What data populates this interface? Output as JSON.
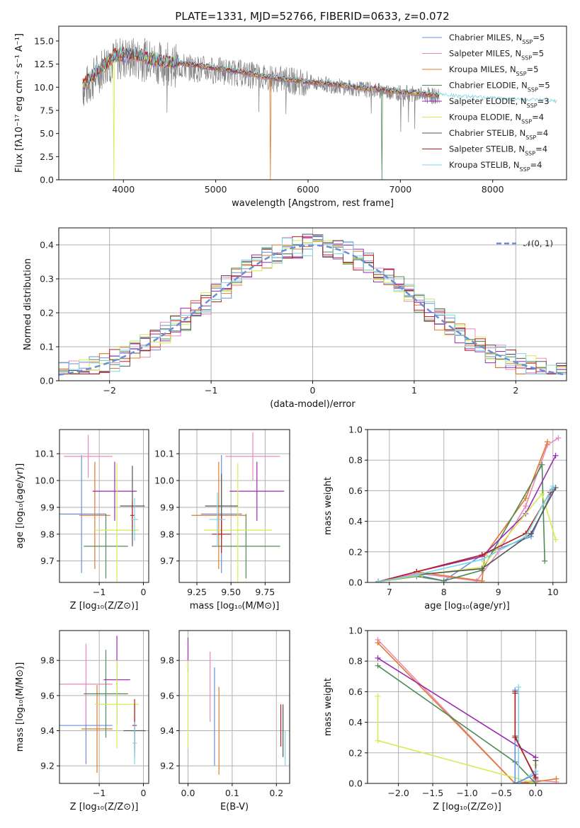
{
  "chart_data": [
    {
      "id": "spectrum",
      "type": "line",
      "title": "PLATE=1331, MJD=52766, FIBERID=0633, z=0.072",
      "xlabel": "wavelength [Angstrom, rest frame]",
      "ylabel": "Flux [fλ10⁻¹⁷ erg cm⁻² s⁻¹ A⁻¹]",
      "xlim": [
        3300,
        8800
      ],
      "ylim": [
        0,
        16.6
      ],
      "xticks": [
        "4000",
        "5000",
        "6000",
        "7000",
        "8000"
      ],
      "yticks": [
        "0.0",
        "2.5",
        "5.0",
        "7.5",
        "10.0",
        "12.5",
        "15.0"
      ],
      "data_color": "#808080",
      "data": {
        "x": [
          3600,
          3800,
          4000,
          4200,
          4400,
          4600,
          4800,
          5000,
          5200,
          5400,
          5600,
          5800,
          6000,
          6200,
          6400,
          6600,
          6800,
          7000,
          7200,
          7400
        ],
        "y": [
          10.0,
          12.5,
          13.2,
          13.0,
          12.6,
          12.3,
          12.0,
          11.8,
          11.6,
          11.3,
          11.0,
          10.7,
          10.5,
          10.3,
          10.0,
          9.8,
          9.6,
          9.4,
          9.2,
          9.0
        ]
      },
      "model": {
        "x": [
          3550,
          3700,
          3900,
          4100,
          4300,
          4500,
          4700,
          4900,
          5100,
          5300,
          5500,
          5700,
          5900,
          6100,
          6300,
          6500,
          6700,
          6900,
          7100,
          7300,
          7500,
          7700,
          7900,
          8100,
          8300,
          8500,
          8700
        ],
        "y": [
          10.2,
          11.5,
          13.4,
          13.6,
          13.0,
          12.7,
          12.5,
          12.2,
          11.9,
          11.6,
          11.2,
          10.9,
          10.7,
          10.5,
          10.3,
          10.0,
          9.8,
          9.6,
          9.4,
          9.2,
          9.0,
          8.8,
          8.7,
          8.6,
          8.5,
          8.4,
          8.3
        ]
      },
      "legend_position": "top-right",
      "legend": [
        {
          "label": "Chabrier MILES, N",
          "sub": "SSP",
          "tail": "=5",
          "color": "#6a8fd8"
        },
        {
          "label": "Salpeter MILES, N",
          "sub": "SSP",
          "tail": "=5",
          "color": "#e888c0"
        },
        {
          "label": "Kroupa MILES, N",
          "sub": "SSP",
          "tail": "=5",
          "color": "#e07a28"
        },
        {
          "label": "Chabrier ELODIE, N",
          "sub": "SSP",
          "tail": "=5",
          "color": "#4e8a55"
        },
        {
          "label": "Salpeter ELODIE, N",
          "sub": "SSP",
          "tail": "=3",
          "color": "#9b2ab5"
        },
        {
          "label": "Kroupa ELODIE, N",
          "sub": "SSP",
          "tail": "=4",
          "color": "#d4ec50"
        },
        {
          "label": "Chabrier STELIB, N",
          "sub": "SSP",
          "tail": "=4",
          "color": "#555555"
        },
        {
          "label": "Salpeter STELIB, N",
          "sub": "SSP",
          "tail": "=4",
          "color": "#b81f1f"
        },
        {
          "label": "Kroupa STELIB, N",
          "sub": "SSP",
          "tail": "=4",
          "color": "#7ed4e6"
        }
      ]
    },
    {
      "id": "residuals",
      "type": "line",
      "xlabel": "(data-model)/error",
      "ylabel": "Normed distribution",
      "xlim": [
        -2.5,
        2.5
      ],
      "ylim": [
        0,
        0.45
      ],
      "xticks": [
        "−2",
        "−1",
        "0",
        "1",
        "2"
      ],
      "yticks": [
        "0.0",
        "0.1",
        "0.2",
        "0.3",
        "0.4"
      ],
      "gauss_label": "𝒩(0, 1)",
      "gauss_color": "#6a8fd8",
      "grid": true,
      "legend_position": "top-right"
    },
    {
      "id": "age-vs-z",
      "type": "scatter",
      "xlabel": "Z [log₁₀(Z/Z⊙)]",
      "ylabel": "age  [log₁₀(age/yr)]",
      "xlim": [
        -1.9,
        0.12
      ],
      "ylim": [
        9.62,
        10.19
      ],
      "xticks": [
        "−1",
        "0"
      ],
      "yticks": [
        "9.7",
        "9.8",
        "9.9",
        "10.0",
        "10.1"
      ],
      "points": [
        {
          "x": -1.4,
          "y": 9.875,
          "xerr": 0.55,
          "yerr": 0.22,
          "color": "#6a8fd8"
        },
        {
          "x": -1.25,
          "y": 10.09,
          "xerr": 0.55,
          "yerr": 0.08,
          "color": "#e888c0"
        },
        {
          "x": -1.1,
          "y": 9.87,
          "xerr": 0.35,
          "yerr": 0.2,
          "color": "#e07a28"
        },
        {
          "x": -0.85,
          "y": 9.755,
          "xerr": 0.5,
          "yerr": 0.12,
          "color": "#4e8a55"
        },
        {
          "x": -0.65,
          "y": 9.96,
          "xerr": 0.5,
          "yerr": 0.11,
          "color": "#9b2ab5"
        },
        {
          "x": -0.6,
          "y": 9.815,
          "xerr": 0.5,
          "yerr": 0.25,
          "color": "#d4ec50"
        },
        {
          "x": -0.25,
          "y": 9.905,
          "xerr": 0.28,
          "yerr": 0.15,
          "color": "#555555"
        },
        {
          "x": -0.25,
          "y": 9.87,
          "xerr": 0.05,
          "yerr": 0.05,
          "color": "#b81f1f"
        },
        {
          "x": -0.2,
          "y": 9.855,
          "xerr": 0.08,
          "yerr": 0.08,
          "color": "#7ed4e6"
        }
      ]
    },
    {
      "id": "age-vs-mass",
      "type": "scatter",
      "xlabel": "mass [log₁₀(M/M⊙)]",
      "xlim": [
        9.12,
        9.93
      ],
      "ylim": [
        9.62,
        10.19
      ],
      "xticks": [
        "9.25",
        "9.50",
        "9.75"
      ],
      "yticks": [
        "9.7",
        "9.8",
        "9.9",
        "10.0",
        "10.1"
      ],
      "points": [
        {
          "x": 9.43,
          "y": 9.875,
          "xerr": 0.15,
          "yerr": 0.22,
          "color": "#6a8fd8"
        },
        {
          "x": 9.66,
          "y": 10.09,
          "xerr": 0.2,
          "yerr": 0.09,
          "color": "#e888c0"
        },
        {
          "x": 9.41,
          "y": 9.87,
          "xerr": 0.2,
          "yerr": 0.2,
          "color": "#e07a28"
        },
        {
          "x": 9.61,
          "y": 9.755,
          "xerr": 0.25,
          "yerr": 0.12,
          "color": "#4e8a55"
        },
        {
          "x": 9.69,
          "y": 9.96,
          "xerr": 0.2,
          "yerr": 0.11,
          "color": "#9b2ab5"
        },
        {
          "x": 9.55,
          "y": 9.815,
          "xerr": 0.25,
          "yerr": 0.25,
          "color": "#d4ec50"
        },
        {
          "x": 9.43,
          "y": 9.905,
          "xerr": 0.12,
          "yerr": 0.12,
          "color": "#555555"
        },
        {
          "x": 9.43,
          "y": 9.8,
          "xerr": 0.07,
          "yerr": 0.07,
          "color": "#b81f1f"
        },
        {
          "x": 9.4,
          "y": 9.855,
          "xerr": 0.06,
          "yerr": 0.1,
          "color": "#7ed4e6"
        }
      ]
    },
    {
      "id": "weight-vs-age",
      "type": "line",
      "xlabel": "age  [log₁₀(age/yr)]",
      "ylabel": "mass weight",
      "xlim": [
        6.6,
        10.25
      ],
      "ylim": [
        0,
        1.0
      ],
      "xticks": [
        "7",
        "8",
        "9",
        "10"
      ],
      "yticks": [
        "0.0",
        "0.2",
        "0.4",
        "0.6",
        "0.8",
        "1.0"
      ],
      "series": [
        {
          "color": "#6a8fd8",
          "x": [
            6.8,
            7.5,
            8.0,
            8.7,
            9.6,
            10.0
          ],
          "y": [
            0.005,
            0.05,
            0.01,
            0.18,
            0.3,
            0.61
          ]
        },
        {
          "color": "#e888c0",
          "x": [
            6.8,
            7.5,
            8.6,
            9.0,
            9.5,
            9.9,
            10.1
          ],
          "y": [
            0.005,
            0.06,
            0.01,
            0.2,
            0.5,
            0.9,
            0.945
          ]
        },
        {
          "color": "#e07a28",
          "x": [
            6.8,
            7.5,
            8.7,
            8.75,
            9.5,
            9.9
          ],
          "y": [
            0.005,
            0.07,
            0.01,
            0.18,
            0.55,
            0.92
          ]
        },
        {
          "color": "#4e8a55",
          "x": [
            6.8,
            7.5,
            8.0,
            8.7,
            9.8,
            9.85
          ],
          "y": [
            0.005,
            0.04,
            0.01,
            0.08,
            0.77,
            0.14
          ]
        },
        {
          "color": "#9b2ab5",
          "x": [
            6.8,
            7.5,
            8.7,
            9.5,
            10.05
          ],
          "y": [
            0.005,
            0.07,
            0.17,
            0.45,
            0.83
          ]
        },
        {
          "color": "#d4ec50",
          "x": [
            6.8,
            7.6,
            8.7,
            9.8,
            10.05
          ],
          "y": [
            0.005,
            0.05,
            0.1,
            0.58,
            0.28
          ]
        },
        {
          "color": "#555555",
          "x": [
            6.8,
            7.5,
            8.7,
            9.6,
            10.05
          ],
          "y": [
            0.005,
            0.05,
            0.09,
            0.32,
            0.62
          ]
        },
        {
          "color": "#b81f1f",
          "x": [
            6.8,
            7.5,
            8.7,
            9.5,
            9.95
          ],
          "y": [
            0.005,
            0.07,
            0.18,
            0.32,
            0.59
          ]
        },
        {
          "color": "#7ed4e6",
          "x": [
            6.8,
            7.5,
            8.7,
            9.5,
            10.0
          ],
          "y": [
            0.005,
            0.05,
            0.15,
            0.3,
            0.63
          ]
        }
      ]
    },
    {
      "id": "mass-vs-z",
      "type": "scatter",
      "xlabel": "Z [log₁₀(Z/Z⊙)]",
      "ylabel": "mass [log₁₀(M/M⊙)]",
      "xlim": [
        -1.9,
        0.12
      ],
      "ylim": [
        9.1,
        9.97
      ],
      "xticks": [
        "−1",
        "0"
      ],
      "yticks": [
        "9.2",
        "9.4",
        "9.6",
        "9.8"
      ],
      "points": [
        {
          "x": -1.3,
          "y": 9.43,
          "xerr": 0.6,
          "yerr": 0.22,
          "color": "#6a8fd8"
        },
        {
          "x": -1.3,
          "y": 9.665,
          "xerr": 0.6,
          "yerr": 0.23,
          "color": "#e888c0"
        },
        {
          "x": -1.05,
          "y": 9.41,
          "xerr": 0.35,
          "yerr": 0.25,
          "color": "#e07a28"
        },
        {
          "x": -0.85,
          "y": 9.61,
          "xerr": 0.5,
          "yerr": 0.25,
          "color": "#4e8a55"
        },
        {
          "x": -0.6,
          "y": 9.69,
          "xerr": 0.3,
          "yerr": 0.25,
          "color": "#9b2ab5"
        },
        {
          "x": -0.6,
          "y": 9.55,
          "xerr": 0.5,
          "yerr": 0.25,
          "color": "#d4ec50"
        },
        {
          "x": -0.2,
          "y": 9.4,
          "xerr": 0.25,
          "yerr": 0.15,
          "color": "#555555"
        },
        {
          "x": -0.2,
          "y": 9.43,
          "xerr": 0.05,
          "yerr": 0.15,
          "color": "#b81f1f"
        },
        {
          "x": -0.2,
          "y": 9.33,
          "xerr": 0.05,
          "yerr": 0.12,
          "color": "#7ed4e6"
        }
      ]
    },
    {
      "id": "mass-vs-ebv",
      "type": "scatter",
      "xlabel": "E(B-V)",
      "xlim": [
        -0.02,
        0.23
      ],
      "ylim": [
        9.1,
        9.97
      ],
      "xticks": [
        "0.0",
        "0.1",
        "0.2"
      ],
      "yticks": [
        "9.2",
        "9.4",
        "9.6",
        "9.8"
      ],
      "points": [
        {
          "x": 0.0,
          "y": 9.83,
          "yerr": 0.1,
          "color": "#9b2ab5"
        },
        {
          "x": 0.0,
          "y": 9.55,
          "yerr": 0.25,
          "color": "#d4ec50"
        },
        {
          "x": 0.05,
          "y": 9.65,
          "yerr": 0.2,
          "color": "#e888c0"
        },
        {
          "x": 0.06,
          "y": 9.48,
          "yerr": 0.28,
          "color": "#6a8fd8"
        },
        {
          "x": 0.07,
          "y": 9.4,
          "yerr": 0.25,
          "color": "#e07a28"
        },
        {
          "x": 0.21,
          "y": 9.43,
          "yerr": 0.12,
          "color": "#b81f1f"
        },
        {
          "x": 0.215,
          "y": 9.4,
          "yerr": 0.15,
          "color": "#555555"
        },
        {
          "x": 0.22,
          "y": 9.3,
          "yerr": 0.1,
          "color": "#7ed4e6"
        }
      ]
    },
    {
      "id": "weight-vs-z",
      "type": "line",
      "xlabel": "Z [log₁₀(Z/Z⊙)]",
      "ylabel": "mass weight",
      "xlim": [
        -2.45,
        0.45
      ],
      "ylim": [
        0,
        1.0
      ],
      "xticks": [
        "−2.0",
        "−1.5",
        "−1.0",
        "−0.5",
        "0.0"
      ],
      "yticks": [
        "0.0",
        "0.2",
        "0.4",
        "0.6",
        "0.8",
        "1.0"
      ],
      "series": [
        {
          "color": "#e888c0",
          "x": [
            -2.3,
            -0.3,
            0.0,
            0.3
          ],
          "y": [
            0.94,
            0.0,
            0.02,
            0.01
          ]
        },
        {
          "color": "#e07a28",
          "x": [
            -2.3,
            -0.3,
            0.0,
            0.3
          ],
          "y": [
            0.92,
            0.0,
            0.01,
            0.03
          ]
        },
        {
          "color": "#9b2ab5",
          "x": [
            -2.3,
            0.0
          ],
          "y": [
            0.82,
            0.17
          ]
        },
        {
          "color": "#4e8a55",
          "x": [
            -2.3,
            -0.3,
            0.0
          ],
          "y": [
            0.77,
            0.14,
            0.0
          ]
        },
        {
          "color": "#d4ec50",
          "x": [
            -2.3,
            -2.3,
            0.0,
            0.0
          ],
          "y": [
            0.57,
            0.28,
            0.0,
            0.12
          ]
        },
        {
          "color": "#555555",
          "x": [
            -0.3,
            -0.3,
            0.0,
            0.0
          ],
          "y": [
            0.6,
            0.31,
            0.03,
            0.15
          ]
        },
        {
          "color": "#7ed4e6",
          "x": [
            -0.25,
            -0.25,
            0.0,
            0.0
          ],
          "y": [
            0.63,
            0.0,
            0.08,
            0.0
          ]
        },
        {
          "color": "#6a8fd8",
          "x": [
            -0.3,
            -0.3,
            0.0,
            0.0
          ],
          "y": [
            0.61,
            0.0,
            0.06,
            0.0
          ]
        },
        {
          "color": "#b81f1f",
          "x": [
            -0.3,
            -0.3,
            0.0
          ],
          "y": [
            0.59,
            0.3,
            0.04
          ]
        }
      ]
    }
  ]
}
